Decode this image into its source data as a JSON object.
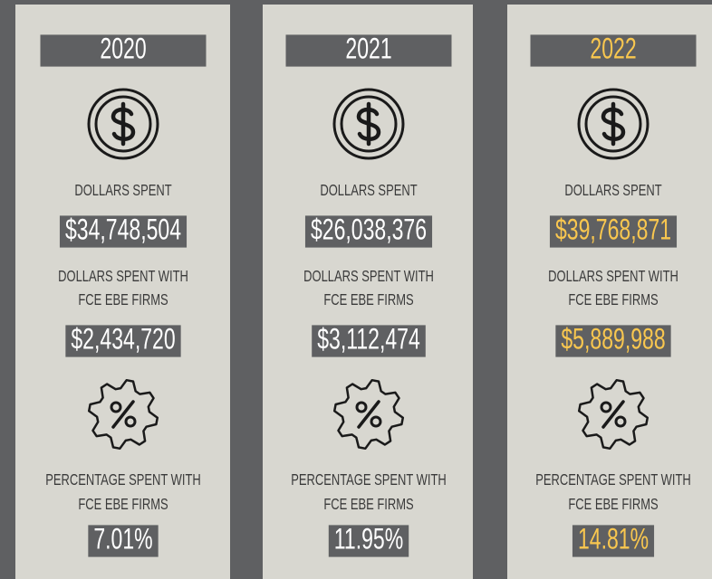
{
  "columns": [
    {
      "year": "2020",
      "color": "#ffffff",
      "dollars_label": "DOLLARS SPENT",
      "dollars": "$34,748,504",
      "ebe_label": [
        "DOLLARS SPENT WITH",
        "FCE EBE FIRMS"
      ],
      "ebe": "$2,434,720",
      "pct_label": [
        "PERCENTAGE SPENT WITH",
        "FCE EBE FIRMS"
      ],
      "pct": "7.01%"
    },
    {
      "year": "2021",
      "color": "#ffffff",
      "dollars_label": "DOLLARS SPENT",
      "dollars": "$26,038,376",
      "ebe_label": [
        "DOLLARS SPENT WITH",
        "FCE EBE FIRMS"
      ],
      "ebe": "$3,112,474",
      "pct_label": [
        "PERCENTAGE SPENT WITH",
        "FCE EBE FIRMS"
      ],
      "pct": "11.95%"
    },
    {
      "year": "2022",
      "color": "#f9c74f",
      "dollars_label": "DOLLARS SPENT",
      "dollars": "$39,768,871",
      "ebe_label": [
        "DOLLARS SPENT WITH",
        "FCE EBE FIRMS"
      ],
      "ebe": "$5,889,988",
      "pct_label": [
        "PERCENTAGE SPENT WITH",
        "FCE EBE FIRMS"
      ],
      "pct": "14.81%"
    }
  ]
}
